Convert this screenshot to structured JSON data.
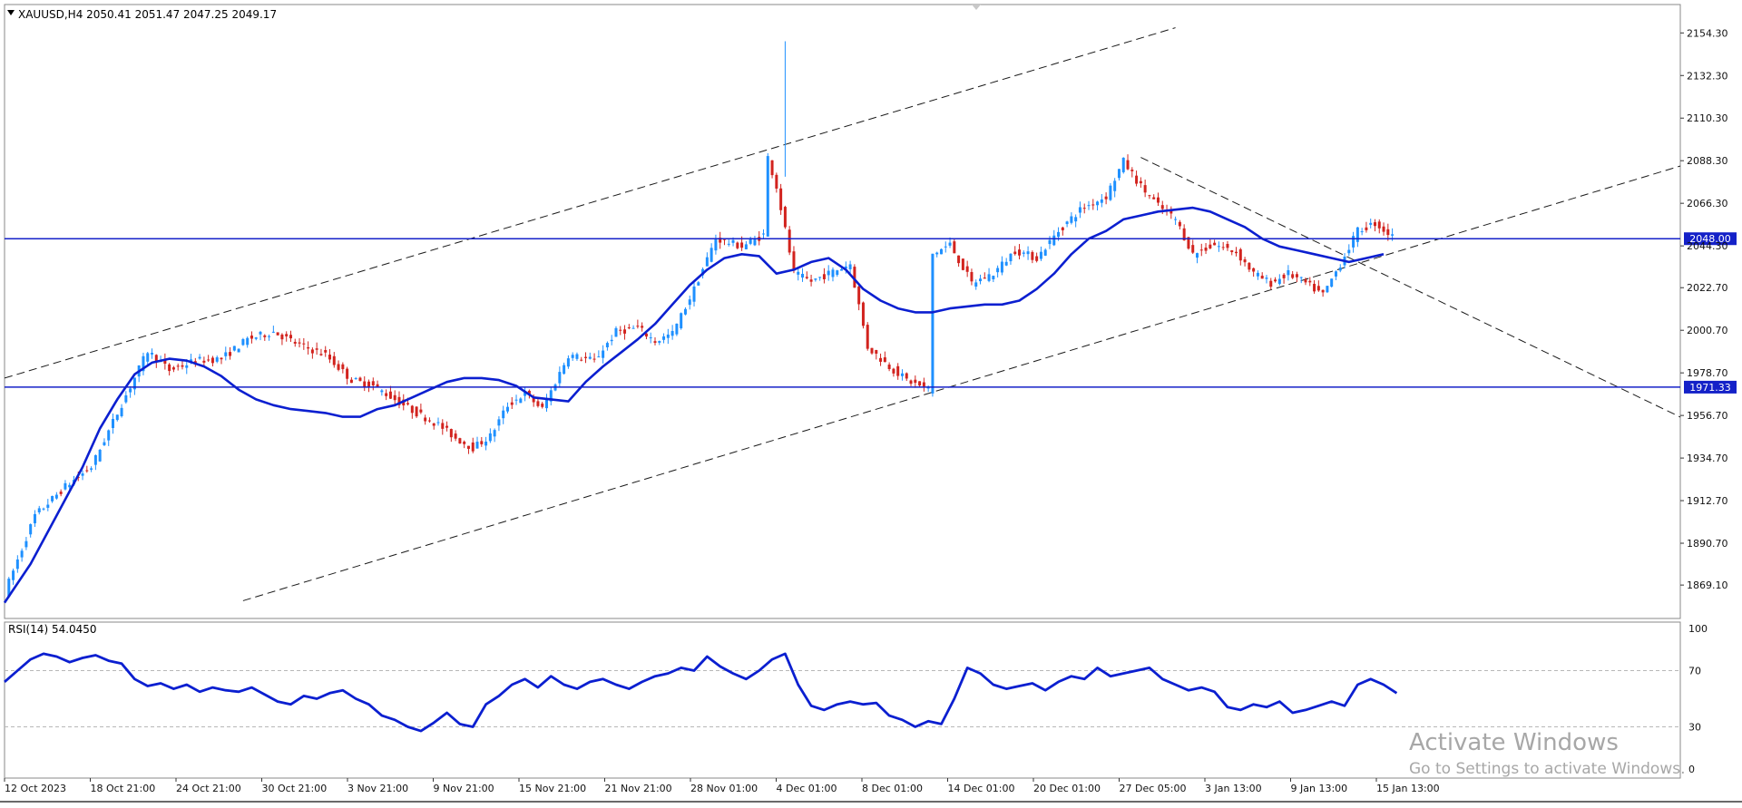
{
  "window": {
    "symbol_header": "XAUUSD,H4  2050.41 2051.47 2047.25 2049.17",
    "rsi_header": "RSI(14) 54.0450"
  },
  "watermark": {
    "title": "Activate Windows",
    "subtitle": "Go to Settings to activate Windows."
  },
  "colors": {
    "bull": "#1e90ff",
    "bear": "#d2231e",
    "ma": "#0b1fd0",
    "level_line": "#1421c8",
    "level_label_bg": "#1421c8",
    "rsi": "#0b1fd0",
    "grid": "#b8b8b8",
    "axis_text": "#111111"
  },
  "chart_data": [
    {
      "type": "candlestick",
      "symbol": "XAUUSD",
      "timeframe": "H4",
      "ohlc_last": {
        "open": 2050.41,
        "high": 2051.47,
        "low": 2047.25,
        "close": 2049.17
      },
      "ylim": [
        1861.2,
        2159.6
      ],
      "y_ticks": [
        "2154.30",
        "2132.30",
        "2110.30",
        "2088.30",
        "2066.30",
        "2044.30",
        "2022.70",
        "2000.70",
        "1978.70",
        "1956.70",
        "1934.70",
        "1912.70",
        "1890.70",
        "1869.10"
      ],
      "x_ticks": [
        "12 Oct 2023",
        "18 Oct 21:00",
        "24 Oct 21:00",
        "30 Oct 21:00",
        "3 Nov 21:00",
        "9 Nov 21:00",
        "15 Nov 21:00",
        "21 Nov 21:00",
        "28 Nov 01:00",
        "4 Dec 01:00",
        "8 Dec 01:00",
        "14 Dec 01:00",
        "20 Dec 01:00",
        "27 Dec 05:00",
        "3 Jan 13:00",
        "9 Jan 13:00",
        "15 Jan 13:00"
      ],
      "close_path": [
        [
          0,
          1865
        ],
        [
          7,
          1905
        ],
        [
          14,
          1920
        ],
        [
          20,
          1930
        ],
        [
          26,
          1958
        ],
        [
          33,
          1990
        ],
        [
          38,
          1980
        ],
        [
          44,
          1985
        ],
        [
          50,
          1986
        ],
        [
          56,
          1996
        ],
        [
          62,
          2000
        ],
        [
          68,
          1993
        ],
        [
          74,
          1988
        ],
        [
          80,
          1975
        ],
        [
          85,
          1972
        ],
        [
          90,
          1965
        ],
        [
          95,
          1958
        ],
        [
          100,
          1952
        ],
        [
          104,
          1945
        ],
        [
          108,
          1940
        ],
        [
          112,
          1946
        ],
        [
          116,
          1962
        ],
        [
          120,
          1968
        ],
        [
          124,
          1960
        ],
        [
          130,
          1988
        ],
        [
          136,
          1985
        ],
        [
          141,
          2000
        ],
        [
          146,
          2002
        ],
        [
          150,
          1995
        ],
        [
          154,
          1999
        ],
        [
          159,
          2022
        ],
        [
          164,
          2048
        ],
        [
          170,
          2044
        ],
        [
          175,
          2050
        ],
        [
          176,
          2090
        ],
        [
          178,
          2075
        ],
        [
          182,
          2030
        ],
        [
          186,
          2026
        ],
        [
          190,
          2030
        ],
        [
          195,
          2035
        ],
        [
          199,
          1992
        ],
        [
          204,
          1982
        ],
        [
          208,
          1975
        ],
        [
          213,
          1970
        ],
        [
          214,
          2040
        ],
        [
          218,
          2045
        ],
        [
          223,
          2025
        ],
        [
          228,
          2030
        ],
        [
          233,
          2042
        ],
        [
          238,
          2038
        ],
        [
          243,
          2052
        ],
        [
          248,
          2063
        ],
        [
          254,
          2070
        ],
        [
          258,
          2088
        ],
        [
          262,
          2075
        ],
        [
          266,
          2065
        ],
        [
          270,
          2058
        ],
        [
          274,
          2040
        ],
        [
          279,
          2045
        ],
        [
          284,
          2041
        ],
        [
          288,
          2030
        ],
        [
          292,
          2025
        ],
        [
          296,
          2030
        ],
        [
          300,
          2025
        ],
        [
          304,
          2019
        ],
        [
          308,
          2035
        ],
        [
          312,
          2052
        ],
        [
          316,
          2056
        ],
        [
          320,
          2049
        ]
      ],
      "moving_average": [
        [
          0,
          1860
        ],
        [
          6,
          1880
        ],
        [
          12,
          1905
        ],
        [
          18,
          1930
        ],
        [
          22,
          1950
        ],
        [
          26,
          1965
        ],
        [
          30,
          1978
        ],
        [
          34,
          1984
        ],
        [
          38,
          1986
        ],
        [
          42,
          1985
        ],
        [
          46,
          1982
        ],
        [
          50,
          1977
        ],
        [
          54,
          1970
        ],
        [
          58,
          1965
        ],
        [
          62,
          1962
        ],
        [
          66,
          1960
        ],
        [
          70,
          1959
        ],
        [
          74,
          1958
        ],
        [
          78,
          1956
        ],
        [
          82,
          1956
        ],
        [
          86,
          1960
        ],
        [
          90,
          1962
        ],
        [
          94,
          1966
        ],
        [
          98,
          1970
        ],
        [
          102,
          1974
        ],
        [
          106,
          1976
        ],
        [
          110,
          1976
        ],
        [
          114,
          1975
        ],
        [
          118,
          1972
        ],
        [
          122,
          1966
        ],
        [
          126,
          1965
        ],
        [
          130,
          1964
        ],
        [
          134,
          1974
        ],
        [
          138,
          1982
        ],
        [
          142,
          1989
        ],
        [
          146,
          1996
        ],
        [
          150,
          2004
        ],
        [
          154,
          2014
        ],
        [
          158,
          2024
        ],
        [
          162,
          2032
        ],
        [
          166,
          2038
        ],
        [
          170,
          2040
        ],
        [
          174,
          2039
        ],
        [
          178,
          2030
        ],
        [
          182,
          2032
        ],
        [
          186,
          2036
        ],
        [
          190,
          2038
        ],
        [
          194,
          2032
        ],
        [
          198,
          2022
        ],
        [
          202,
          2016
        ],
        [
          206,
          2012
        ],
        [
          210,
          2010
        ],
        [
          214,
          2010
        ],
        [
          218,
          2012
        ],
        [
          222,
          2013
        ],
        [
          226,
          2014
        ],
        [
          230,
          2014
        ],
        [
          234,
          2016
        ],
        [
          238,
          2022
        ],
        [
          242,
          2030
        ],
        [
          246,
          2040
        ],
        [
          250,
          2048
        ],
        [
          254,
          2052
        ],
        [
          258,
          2058
        ],
        [
          262,
          2060
        ],
        [
          266,
          2062
        ],
        [
          270,
          2063
        ],
        [
          274,
          2064
        ],
        [
          278,
          2062
        ],
        [
          282,
          2058
        ],
        [
          286,
          2054
        ],
        [
          290,
          2048
        ],
        [
          294,
          2044
        ],
        [
          298,
          2042
        ],
        [
          302,
          2040
        ],
        [
          306,
          2038
        ],
        [
          310,
          2036
        ],
        [
          314,
          2038
        ],
        [
          318,
          2040
        ]
      ],
      "spike": {
        "x": 180,
        "low": 2080,
        "high": 2150
      },
      "horizontal_levels": [
        {
          "value": 2048.0,
          "label": "2048.00"
        },
        {
          "value": 1971.33,
          "label": "1971.33"
        }
      ],
      "trendlines": [
        {
          "name": "channel-upper",
          "x1": 0,
          "y1": 1976,
          "x2": 270,
          "y2": 2157
        },
        {
          "name": "channel-lower",
          "x1": 55,
          "y1": 1861,
          "x2": 390,
          "y2": 2088
        },
        {
          "name": "descending",
          "x1": 262,
          "y1": 2090,
          "x2": 390,
          "y2": 1952
        }
      ]
    },
    {
      "type": "line",
      "name": "RSI(14)",
      "value_last": 54.045,
      "ylim": [
        0,
        100
      ],
      "y_ticks": [
        "100",
        "70",
        "30",
        "0"
      ],
      "levels": [
        70,
        30
      ],
      "series_path": [
        [
          0,
          62
        ],
        [
          3,
          70
        ],
        [
          6,
          78
        ],
        [
          9,
          82
        ],
        [
          12,
          80
        ],
        [
          15,
          76
        ],
        [
          18,
          79
        ],
        [
          21,
          81
        ],
        [
          24,
          77
        ],
        [
          27,
          75
        ],
        [
          30,
          64
        ],
        [
          33,
          59
        ],
        [
          36,
          61
        ],
        [
          39,
          57
        ],
        [
          42,
          60
        ],
        [
          45,
          55
        ],
        [
          48,
          58
        ],
        [
          51,
          56
        ],
        [
          54,
          55
        ],
        [
          57,
          58
        ],
        [
          60,
          53
        ],
        [
          63,
          48
        ],
        [
          66,
          46
        ],
        [
          69,
          52
        ],
        [
          72,
          50
        ],
        [
          75,
          54
        ],
        [
          78,
          56
        ],
        [
          81,
          50
        ],
        [
          84,
          46
        ],
        [
          87,
          38
        ],
        [
          90,
          35
        ],
        [
          93,
          30
        ],
        [
          96,
          27
        ],
        [
          99,
          33
        ],
        [
          102,
          40
        ],
        [
          105,
          32
        ],
        [
          108,
          30
        ],
        [
          111,
          46
        ],
        [
          114,
          52
        ],
        [
          117,
          60
        ],
        [
          120,
          64
        ],
        [
          123,
          58
        ],
        [
          126,
          66
        ],
        [
          129,
          60
        ],
        [
          132,
          57
        ],
        [
          135,
          62
        ],
        [
          138,
          64
        ],
        [
          141,
          60
        ],
        [
          144,
          57
        ],
        [
          147,
          62
        ],
        [
          150,
          66
        ],
        [
          153,
          68
        ],
        [
          156,
          72
        ],
        [
          159,
          70
        ],
        [
          162,
          80
        ],
        [
          165,
          73
        ],
        [
          168,
          68
        ],
        [
          171,
          64
        ],
        [
          174,
          70
        ],
        [
          177,
          78
        ],
        [
          180,
          82
        ],
        [
          183,
          60
        ],
        [
          186,
          45
        ],
        [
          189,
          42
        ],
        [
          192,
          46
        ],
        [
          195,
          48
        ],
        [
          198,
          46
        ],
        [
          201,
          47
        ],
        [
          204,
          38
        ],
        [
          207,
          35
        ],
        [
          210,
          30
        ],
        [
          213,
          34
        ],
        [
          216,
          32
        ],
        [
          219,
          50
        ],
        [
          222,
          72
        ],
        [
          225,
          68
        ],
        [
          228,
          60
        ],
        [
          231,
          57
        ],
        [
          234,
          59
        ],
        [
          237,
          61
        ],
        [
          240,
          56
        ],
        [
          243,
          62
        ],
        [
          246,
          66
        ],
        [
          249,
          64
        ],
        [
          252,
          72
        ],
        [
          255,
          66
        ],
        [
          258,
          68
        ],
        [
          261,
          70
        ],
        [
          264,
          72
        ],
        [
          267,
          64
        ],
        [
          270,
          60
        ],
        [
          273,
          56
        ],
        [
          276,
          58
        ],
        [
          279,
          55
        ],
        [
          282,
          44
        ],
        [
          285,
          42
        ],
        [
          288,
          46
        ],
        [
          291,
          44
        ],
        [
          294,
          48
        ],
        [
          297,
          40
        ],
        [
          300,
          42
        ],
        [
          303,
          45
        ],
        [
          306,
          48
        ],
        [
          309,
          45
        ],
        [
          312,
          60
        ],
        [
          315,
          64
        ],
        [
          318,
          60
        ],
        [
          321,
          54
        ]
      ]
    }
  ]
}
